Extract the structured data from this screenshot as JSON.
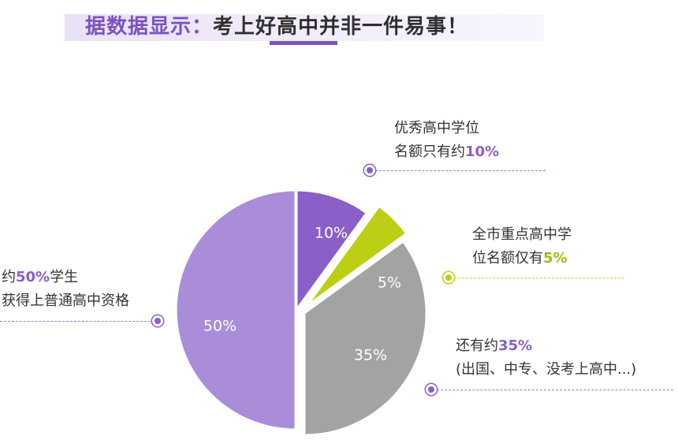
{
  "header": {
    "title_accent": "据数据显示：",
    "title_rest": "考上好高中并非一件易事！"
  },
  "chart_data": {
    "type": "pie",
    "slices": [
      {
        "label": "10%",
        "value": 10,
        "color": "#8a5fc8"
      },
      {
        "label": "5%",
        "value": 5,
        "color": "#bccf14"
      },
      {
        "label": "35%",
        "value": 35,
        "color": "#a3a3a3"
      },
      {
        "label": "50%",
        "value": 50,
        "color": "#a98dd9"
      }
    ]
  },
  "callouts": {
    "top": {
      "line1": "优秀高中学位",
      "line2_text": "名额只有约",
      "line2_value": "10%"
    },
    "mid": {
      "line1": "全市重点高中学",
      "line2_text": "位名额仅有",
      "line2_value": "5%"
    },
    "bottom": {
      "line1_text": "还有约",
      "line1_value": "35%",
      "line2": "(出国、中专、没考上高中...)"
    },
    "left": {
      "line1_text": "约",
      "line1_value": "50%",
      "line1_suffix": "学生",
      "line2": "获得上普通高中资格"
    }
  }
}
